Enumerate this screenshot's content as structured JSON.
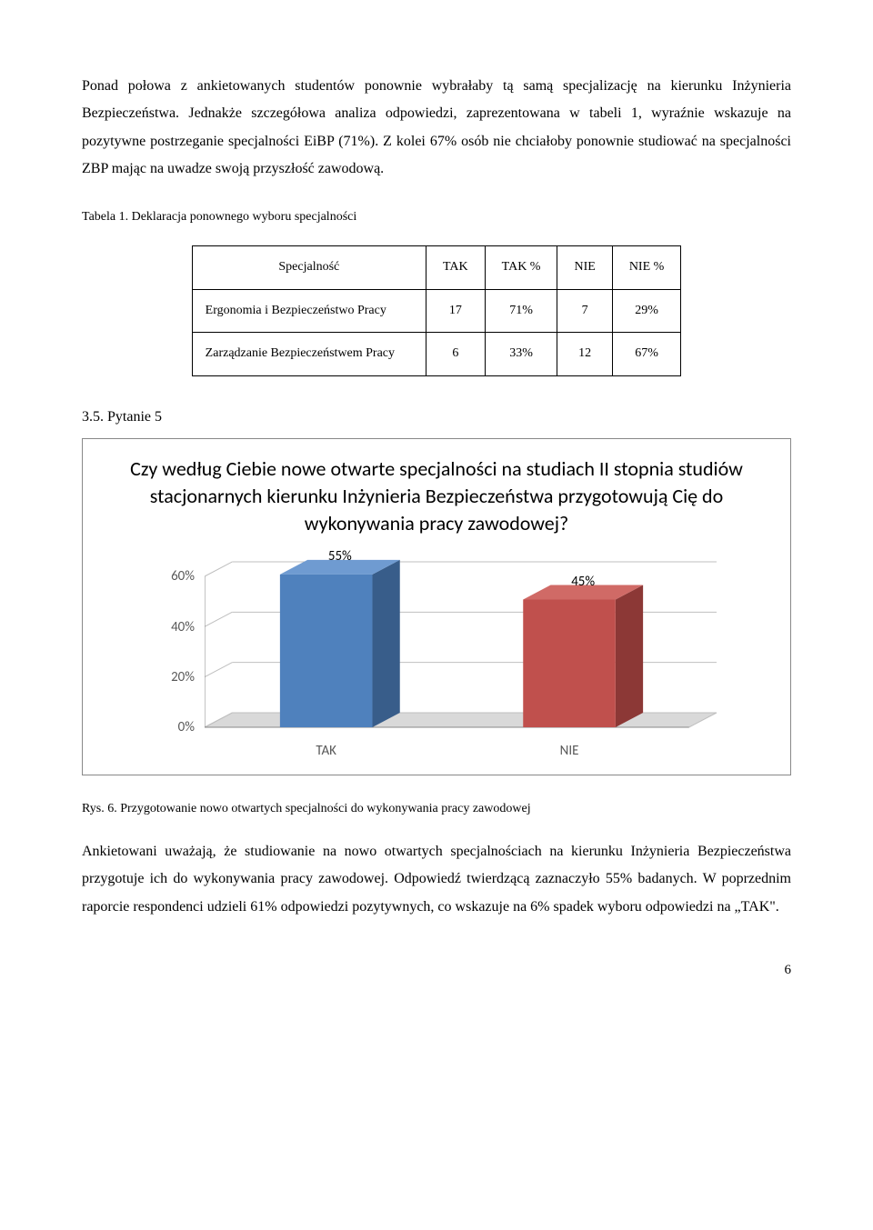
{
  "para1": "Ponad połowa z ankietowanych studentów ponownie wybrałaby tą samą specjalizację na kierunku Inżynieria Bezpieczeństwa. Jednakże szczegółowa analiza odpowiedzi, zaprezentowana w tabeli 1, wyraźnie wskazuje na pozytywne postrzeganie specjalności EiBP (71%). Z kolei 67% osób nie chciałoby ponownie studiować na specjalności ZBP mając na uwadze swoją przyszłość zawodową.",
  "table1_caption": "Tabela 1. Deklaracja ponownego wyboru specjalności",
  "table1": {
    "headers": [
      "Specjalność",
      "TAK",
      "TAK %",
      "NIE",
      "NIE %"
    ],
    "rows": [
      [
        "Ergonomia i Bezpieczeństwo Pracy",
        "17",
        "71%",
        "7",
        "29%"
      ],
      [
        "Zarządzanie Bezpieczeństwem Pracy",
        "6",
        "33%",
        "12",
        "67%"
      ]
    ]
  },
  "section_label": "3.5.   Pytanie 5",
  "chart": {
    "type": "bar-3d",
    "title": "Czy według Ciebie nowe otwarte specjalności na studiach II stopnia studiów stacjonarnych kierunku Inżynieria Bezpieczeństwa przygotowują Cię do wykonywania pracy zawodowej?",
    "categories": [
      "TAK",
      "NIE"
    ],
    "values": [
      55,
      45
    ],
    "value_labels": [
      "55%",
      "45%"
    ],
    "bar_colors": [
      "#4f81bd",
      "#c0504d"
    ],
    "bar_colors_dark": [
      "#385d8a",
      "#8c3836"
    ],
    "bar_colors_light": [
      "#6f9bd1",
      "#d06a66"
    ],
    "y_ticks": [
      0,
      20,
      40,
      60
    ],
    "y_tick_labels": [
      "0%",
      "20%",
      "40%",
      "60%"
    ],
    "ylim": [
      0,
      60
    ],
    "grid_color": "#bfbfbf",
    "floor_color": "#d9d9d9",
    "label_fontsize": 15,
    "title_fontsize": 22
  },
  "fig_caption": "Rys. 6. Przygotowanie nowo otwartych specjalności do wykonywania pracy zawodowej",
  "para2": "Ankietowani uważają, że studiowanie na nowo otwartych specjalnościach na kierunku Inżynieria Bezpieczeństwa przygotuje ich do wykonywania pracy zawodowej. Odpowiedź twierdzącą zaznaczyło 55% badanych. W poprzednim raporcie respondenci udzieli 61% odpowiedzi pozytywnych, co wskazuje na 6% spadek wyboru odpowiedzi na „TAK\".",
  "page_number": "6"
}
